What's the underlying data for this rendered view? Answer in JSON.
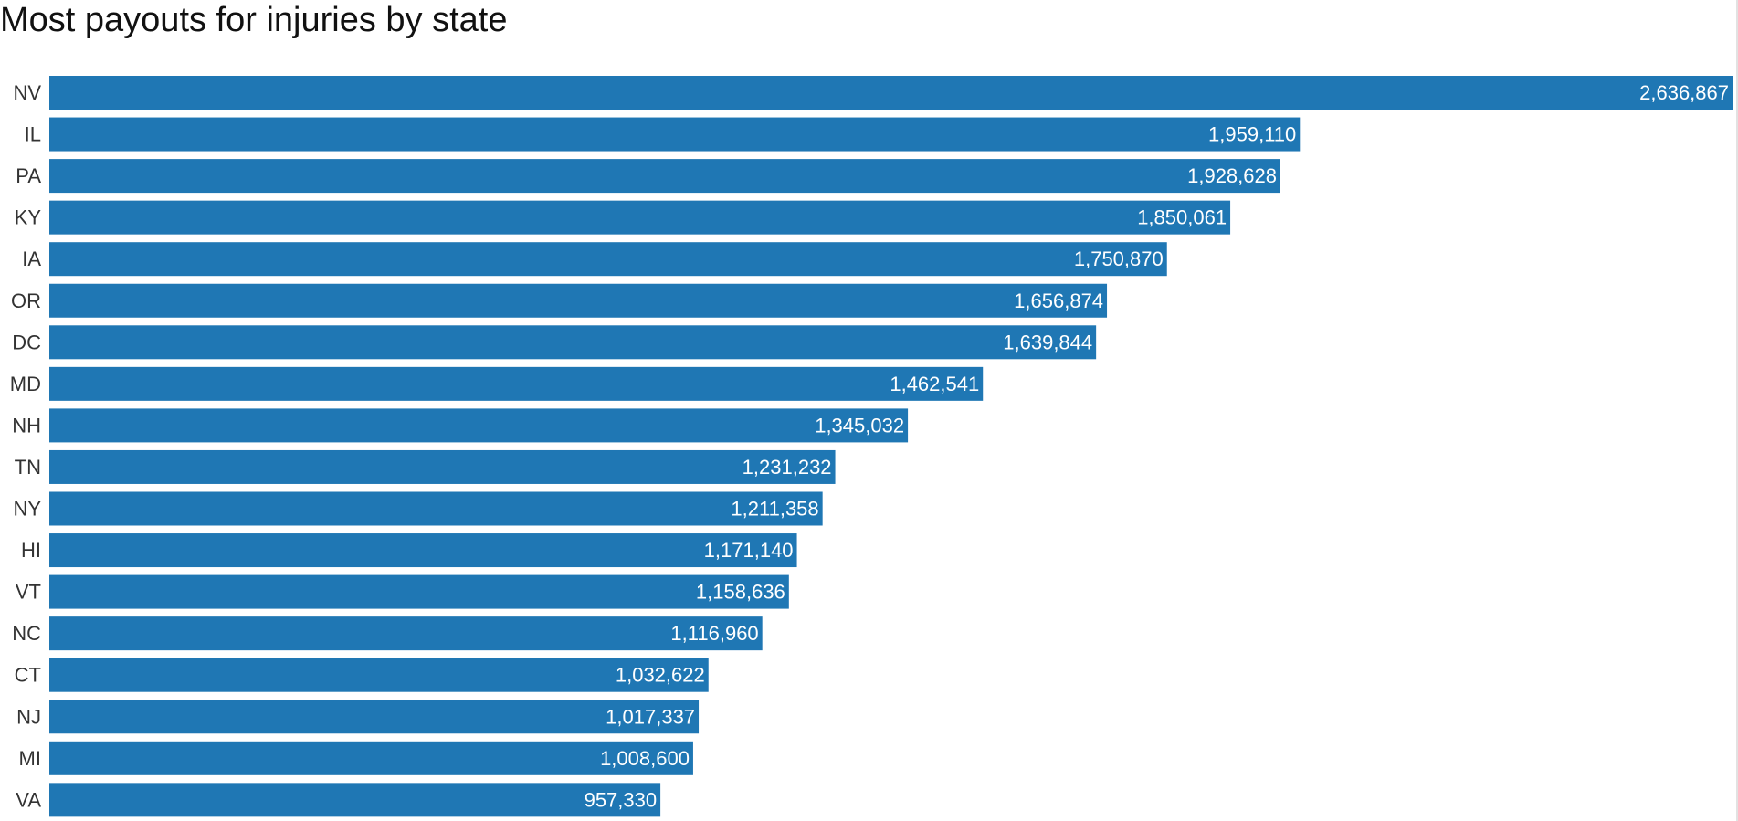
{
  "chart_data": {
    "type": "bar",
    "orientation": "horizontal",
    "title": "Most payouts for injuries by state",
    "categories": [
      "NV",
      "IL",
      "PA",
      "KY",
      "IA",
      "OR",
      "DC",
      "MD",
      "NH",
      "TN",
      "NY",
      "HI",
      "VT",
      "NC",
      "CT",
      "NJ",
      "MI",
      "VA"
    ],
    "values": [
      2636867,
      1959110,
      1928628,
      1850061,
      1750870,
      1656874,
      1639844,
      1462541,
      1345032,
      1231232,
      1211358,
      1171140,
      1158636,
      1116960,
      1032622,
      1017337,
      1008600,
      957330
    ],
    "value_labels": [
      "2,636,867",
      "1,959,110",
      "1,928,628",
      "1,850,061",
      "1,750,870",
      "1,656,874",
      "1,639,844",
      "1,462,541",
      "1,345,032",
      "1,231,232",
      "1,211,358",
      "1,171,140",
      "1,158,636",
      "1,116,960",
      "1,032,622",
      "1,017,337",
      "1,008,600",
      "957,330"
    ],
    "xlim": [
      0,
      2636867
    ],
    "grid": false,
    "legend": "none",
    "bar_color": "#1f77b4",
    "label_color": "#ffffff",
    "category_label_color": "#333333"
  }
}
